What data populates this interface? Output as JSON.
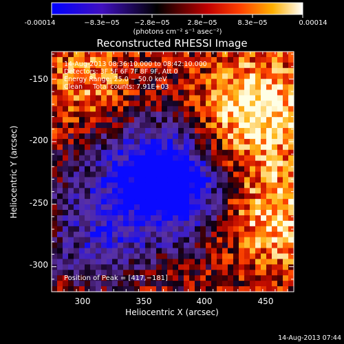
{
  "chart_data": {
    "type": "heatmap",
    "title": "Reconstructed RHESSI Image",
    "xlabel": "Heliocentric X (arcsec)",
    "ylabel": "Heliocentric Y (arcsec)",
    "xlim": [
      275,
      470
    ],
    "ylim": [
      -320,
      -128
    ],
    "x_ticks": [
      300,
      350,
      400,
      450
    ],
    "y_ticks": [
      -150,
      -200,
      -250,
      -300
    ],
    "colorbar": {
      "ticks": [
        "-0.00014",
        "−8.3e−05",
        "−2.8e−05",
        "2.8e−05",
        "8.3e−05",
        "0.00014"
      ],
      "min": -0.00014,
      "max": 0.00014,
      "unit_label": "(photons cm⁻² s⁻¹ asec⁻²)"
    },
    "info_lines": [
      "14‐Aug‐2013 08:36:10.000 to 08:42:10.000",
      "Detectors: 3F 5F 6F 7F 8F 9F, Att 0",
      "Energy Range: 25.0 − 50.0 keV",
      "Clean     Total counts: 7.91E+03"
    ],
    "peak_label": "Position of Peak = [417,−181]",
    "peak": [
      417,
      -181
    ],
    "timestamp": "14‐Aug‐2013 07:44",
    "colors": {
      "background": "#000000",
      "axes": "#ffffff",
      "text": "#ffffff"
    }
  }
}
